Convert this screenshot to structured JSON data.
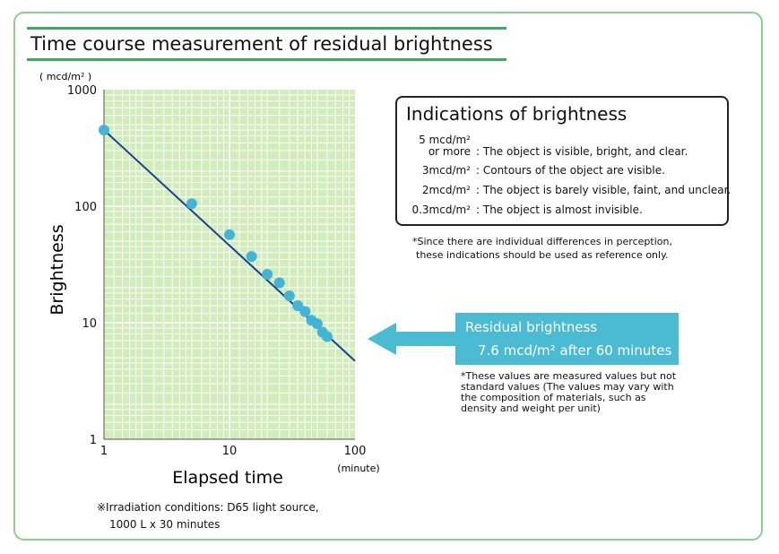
{
  "title": "Time course measurement of residual brightness",
  "chart_data": {
    "type": "scatter",
    "scale": "log-log",
    "grid": true,
    "ylabel": "Brightness",
    "yunit": "( mcd/m² )",
    "xlabel": "Elapsed time",
    "xunit": "(minute)",
    "xlim": [
      1,
      100
    ],
    "ylim": [
      1,
      1000
    ],
    "xticks": [
      "1",
      "10",
      "100"
    ],
    "yticks": [
      "1",
      "10",
      "100",
      "1000"
    ],
    "points": [
      {
        "x": 1,
        "y": 450
      },
      {
        "x": 5,
        "y": 105
      },
      {
        "x": 10,
        "y": 57
      },
      {
        "x": 15,
        "y": 37
      },
      {
        "x": 20,
        "y": 26
      },
      {
        "x": 25,
        "y": 22
      },
      {
        "x": 30,
        "y": 17
      },
      {
        "x": 35,
        "y": 14
      },
      {
        "x": 40,
        "y": 12.5
      },
      {
        "x": 45,
        "y": 10.5
      },
      {
        "x": 50,
        "y": 9.8
      },
      {
        "x": 55,
        "y": 8.3
      },
      {
        "x": 60,
        "y": 7.6
      }
    ],
    "trendline": [
      {
        "x": 1,
        "y": 450
      },
      {
        "x": 100,
        "y": 4.7
      }
    ],
    "colors": {
      "plot_bg": "#d2ecbc",
      "grid": "#ffffff",
      "point": "#43b3d6",
      "line": "#1c3f8f",
      "arrow": "#4bbbd3"
    }
  },
  "indications": {
    "title": "Indications of brightness",
    "rows": [
      {
        "value_line1": "5 mcd/m²",
        "value_line2": "or more",
        "desc": ": The object is visible, bright, and clear."
      },
      {
        "value": "3mcd/m²",
        "desc": ": Contours of the object are visible."
      },
      {
        "value": "2mcd/m²",
        "desc": ": The object is barely visible, faint, and unclear."
      },
      {
        "value": "0.3mcd/m²",
        "desc": ": The object is almost invisible."
      }
    ],
    "note_line1": "*Since there are individual differences in perception,",
    "note_line2": "these indications should be used as reference only."
  },
  "residual": {
    "title": "Residual brightness",
    "value": "7.6 mcd/m² after 60 minutes",
    "note": "*These values are measured values but not standard values (The values may vary with the composition of materials, such as density and weight per unit)"
  },
  "irradiation": {
    "line1": "※Irradiation conditions: D65 light source,",
    "line2": "1000 L x 30 minutes"
  }
}
